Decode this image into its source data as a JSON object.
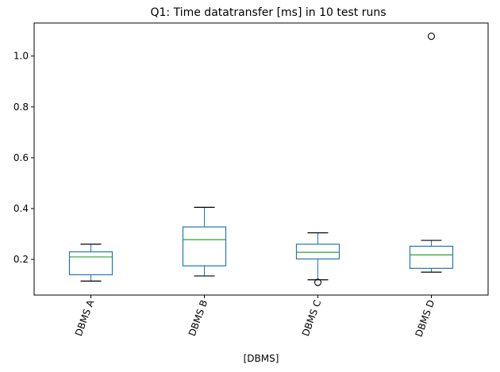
{
  "chart_data": {
    "type": "box",
    "title": "Q1: Time datatransfer [ms] in 10 test runs",
    "xlabel": "[DBMS]",
    "ylabel": "",
    "ylim": [
      0.06,
      1.13
    ],
    "yticks": [
      0.2,
      0.4,
      0.6,
      0.8,
      1.0
    ],
    "ytick_labels": [
      "0.2",
      "0.4",
      "0.6",
      "0.8",
      "1.0"
    ],
    "categories": [
      "DBMS A",
      "DBMS B",
      "DBMS C",
      "DBMS D"
    ],
    "boxes": [
      {
        "label": "DBMS A",
        "whisker_low": 0.115,
        "q1": 0.14,
        "median": 0.21,
        "q3": 0.23,
        "whisker_high": 0.26,
        "outliers": []
      },
      {
        "label": "DBMS B",
        "whisker_low": 0.135,
        "q1": 0.175,
        "median": 0.278,
        "q3": 0.328,
        "whisker_high": 0.405,
        "outliers": []
      },
      {
        "label": "DBMS C",
        "whisker_low": 0.12,
        "q1": 0.202,
        "median": 0.228,
        "q3": 0.26,
        "whisker_high": 0.305,
        "outliers": [
          0.11
        ]
      },
      {
        "label": "DBMS D",
        "whisker_low": 0.15,
        "q1": 0.165,
        "median": 0.218,
        "q3": 0.252,
        "whisker_high": 0.275,
        "outliers": [
          1.078
        ]
      }
    ],
    "grid": false,
    "colors": {
      "box": "#1f77b4",
      "median": "#2ca02c",
      "whisker": "#000000",
      "outlier": "#000000"
    }
  }
}
